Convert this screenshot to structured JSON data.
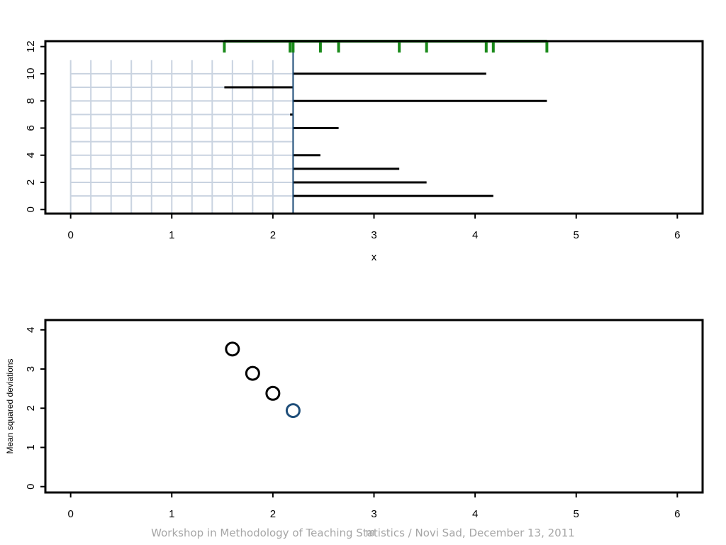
{
  "chart_data": [
    {
      "type": "segments",
      "xlabel": "x",
      "ylabel": "",
      "xlim": [
        -0.25,
        6.25
      ],
      "ylim": [
        -0.3,
        12.4
      ],
      "xticks": [
        0,
        1,
        2,
        3,
        4,
        5,
        6
      ],
      "yticks": [
        0,
        2,
        4,
        6,
        8,
        10,
        12
      ],
      "observations": [
        4.18,
        3.52,
        3.25,
        2.47,
        2.2,
        2.65,
        2.17,
        4.71,
        1.52,
        4.11
      ],
      "candidate_m_values": [
        0,
        0.2,
        0.4,
        0.6,
        0.8,
        1.0,
        1.2,
        1.4,
        1.6,
        1.8,
        2.0,
        2.2
      ],
      "current_m": 2.2,
      "rug_y": 12.4,
      "colors": {
        "segments": "#000000",
        "rug": "#1a8a1a",
        "current_m_line": "#1f4e79",
        "grid": "#c9d3e0"
      }
    },
    {
      "type": "scatter",
      "xlabel": "m",
      "ylabel": "Mean squared deviations",
      "xlim": [
        -0.25,
        6.25
      ],
      "ylim": [
        -0.15,
        4.25
      ],
      "xticks": [
        0,
        1,
        2,
        3,
        4,
        5,
        6
      ],
      "yticks": [
        0,
        1,
        2,
        3,
        4
      ],
      "points": [
        {
          "x": 1.6,
          "y": 3.51,
          "color": "#000000"
        },
        {
          "x": 1.8,
          "y": 2.89,
          "color": "#000000"
        },
        {
          "x": 2.0,
          "y": 2.38,
          "color": "#000000"
        },
        {
          "x": 2.2,
          "y": 1.94,
          "color": "#1f4e79"
        }
      ]
    }
  ],
  "footer": {
    "text": "Workshop in Methodology of Teaching Statistics / Novi Sad, December 13, 2011"
  }
}
